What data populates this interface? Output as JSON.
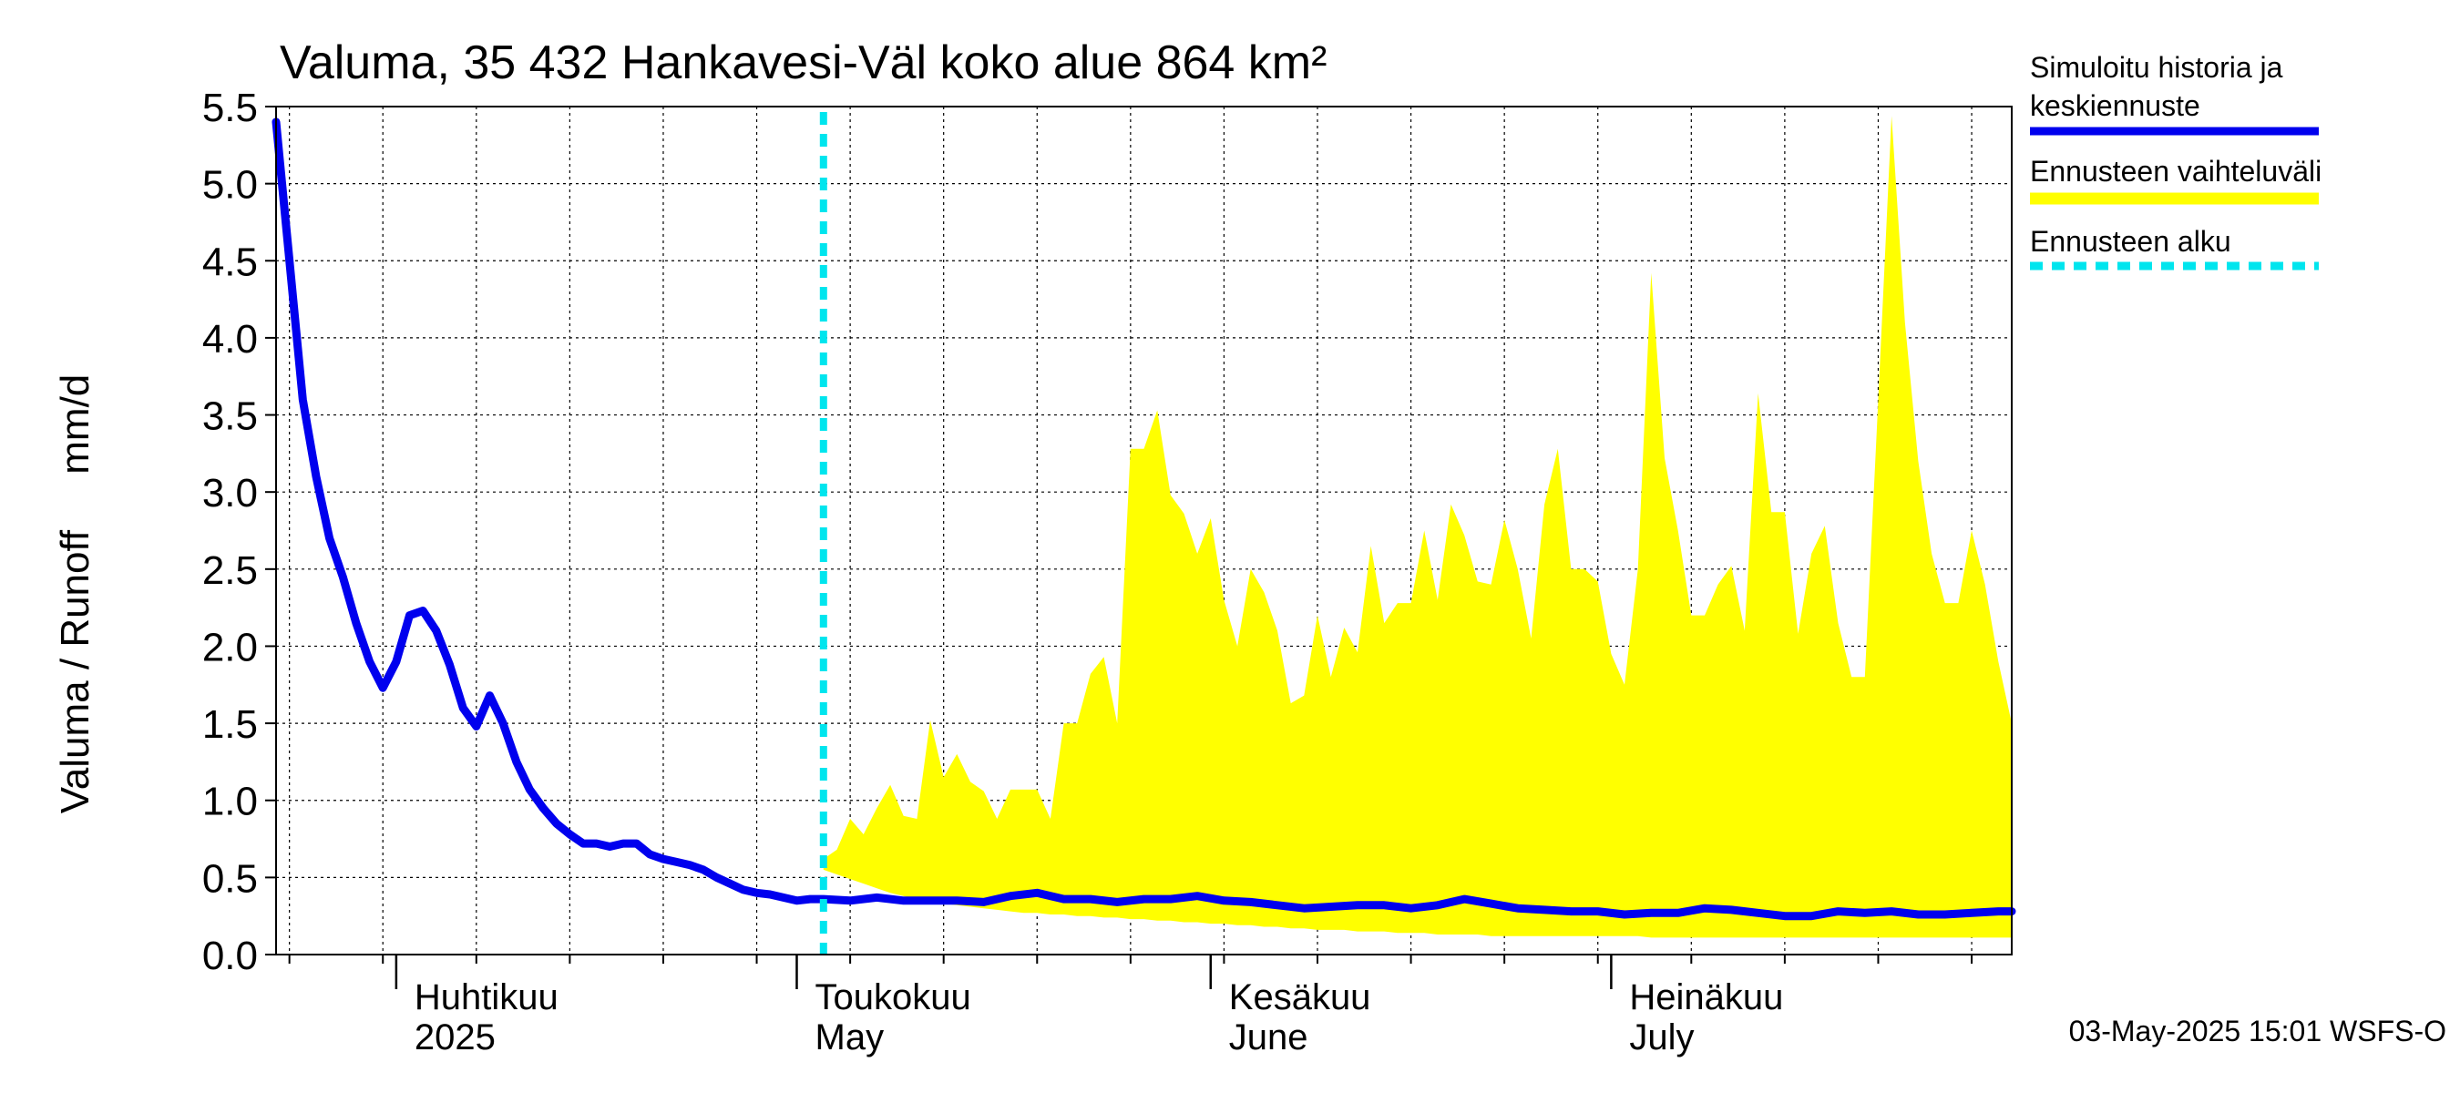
{
  "chart_data": {
    "type": "area",
    "title": "Valuma, 35 432 Hankavesi-Väl koko alue 864 km²",
    "ylabel": "Valuma / Runoff     mm/d",
    "xlabel": "",
    "ylim": [
      0,
      5.5
    ],
    "y_ticks": [
      "0.0",
      "0.5",
      "1.0",
      "1.5",
      "2.0",
      "2.5",
      "3.0",
      "3.5",
      "4.0",
      "4.5",
      "5.0",
      "5.5"
    ],
    "x_range": [
      "2025-03-23",
      "2025-07-31"
    ],
    "grid": true,
    "month_labels": [
      {
        "date": "2025-04-01",
        "fi": "Huhtikuu",
        "en": "2025"
      },
      {
        "date": "2025-05-01",
        "fi": "Toukokuu",
        "en": "May"
      },
      {
        "date": "2025-06-01",
        "fi": "Kesäkuu",
        "en": "June"
      },
      {
        "date": "2025-07-01",
        "fi": "Heinäkuu",
        "en": "July"
      }
    ],
    "forecast_start": "2025-05-03",
    "legend": {
      "position": "right",
      "items": [
        {
          "label_line1": "Simuloitu historia ja",
          "label_line2": "keskiennuste",
          "color": "#0000ee",
          "style": "solid"
        },
        {
          "label_line1": "Ennusteen vaihteluväli",
          "label_line2": "",
          "color": "#ffff00",
          "style": "band"
        },
        {
          "label_line1": "Ennusteen alku",
          "label_line2": "",
          "color": "#00e5ee",
          "style": "dashed"
        }
      ]
    },
    "timestamp": "03-May-2025 15:01 WSFS-O",
    "series": [
      {
        "name": "Simuloitu historia ja keskiennuste",
        "color": "#0000ee",
        "x": [
          "2025-03-23",
          "2025-03-24",
          "2025-03-25",
          "2025-03-26",
          "2025-03-27",
          "2025-03-28",
          "2025-03-29",
          "2025-03-30",
          "2025-03-31",
          "2025-04-01",
          "2025-04-02",
          "2025-04-03",
          "2025-04-04",
          "2025-04-05",
          "2025-04-06",
          "2025-04-07",
          "2025-04-08",
          "2025-04-09",
          "2025-04-10",
          "2025-04-11",
          "2025-04-12",
          "2025-04-13",
          "2025-04-14",
          "2025-04-15",
          "2025-04-16",
          "2025-04-17",
          "2025-04-18",
          "2025-04-19",
          "2025-04-20",
          "2025-04-21",
          "2025-04-22",
          "2025-04-23",
          "2025-04-24",
          "2025-04-25",
          "2025-04-26",
          "2025-04-27",
          "2025-04-28",
          "2025-04-29",
          "2025-04-30",
          "2025-05-01",
          "2025-05-02",
          "2025-05-03",
          "2025-05-05",
          "2025-05-07",
          "2025-05-09",
          "2025-05-11",
          "2025-05-13",
          "2025-05-15",
          "2025-05-17",
          "2025-05-19",
          "2025-05-21",
          "2025-05-23",
          "2025-05-25",
          "2025-05-27",
          "2025-05-29",
          "2025-05-31",
          "2025-06-02",
          "2025-06-04",
          "2025-06-06",
          "2025-06-08",
          "2025-06-10",
          "2025-06-12",
          "2025-06-14",
          "2025-06-16",
          "2025-06-18",
          "2025-06-20",
          "2025-06-22",
          "2025-06-24",
          "2025-06-26",
          "2025-06-28",
          "2025-06-30",
          "2025-07-02",
          "2025-07-04",
          "2025-07-06",
          "2025-07-08",
          "2025-07-10",
          "2025-07-12",
          "2025-07-14",
          "2025-07-16",
          "2025-07-18",
          "2025-07-20",
          "2025-07-22",
          "2025-07-24",
          "2025-07-26",
          "2025-07-28",
          "2025-07-30",
          "2025-07-31"
        ],
        "values": [
          5.4,
          4.5,
          3.6,
          3.1,
          2.7,
          2.45,
          2.15,
          1.9,
          1.73,
          1.9,
          2.2,
          2.23,
          2.1,
          1.88,
          1.6,
          1.48,
          1.68,
          1.5,
          1.25,
          1.07,
          0.95,
          0.85,
          0.78,
          0.72,
          0.72,
          0.7,
          0.72,
          0.72,
          0.65,
          0.62,
          0.6,
          0.58,
          0.55,
          0.5,
          0.46,
          0.42,
          0.4,
          0.39,
          0.37,
          0.35,
          0.36,
          0.36,
          0.35,
          0.37,
          0.35,
          0.35,
          0.35,
          0.34,
          0.38,
          0.4,
          0.36,
          0.36,
          0.34,
          0.36,
          0.36,
          0.38,
          0.35,
          0.34,
          0.32,
          0.3,
          0.31,
          0.32,
          0.32,
          0.3,
          0.32,
          0.36,
          0.33,
          0.3,
          0.29,
          0.28,
          0.28,
          0.26,
          0.27,
          0.27,
          0.3,
          0.29,
          0.27,
          0.25,
          0.25,
          0.28,
          0.27,
          0.28,
          0.26,
          0.26,
          0.27,
          0.28,
          0.28
        ]
      },
      {
        "name": "Ennusteen vaihteluväli",
        "color": "#ffff00",
        "x": [
          "2025-05-03",
          "2025-05-04",
          "2025-05-05",
          "2025-05-06",
          "2025-05-07",
          "2025-05-08",
          "2025-05-09",
          "2025-05-10",
          "2025-05-11",
          "2025-05-12",
          "2025-05-13",
          "2025-05-14",
          "2025-05-15",
          "2025-05-16",
          "2025-05-17",
          "2025-05-18",
          "2025-05-19",
          "2025-05-20",
          "2025-05-21",
          "2025-05-22",
          "2025-05-23",
          "2025-05-24",
          "2025-05-25",
          "2025-05-26",
          "2025-05-27",
          "2025-05-28",
          "2025-05-29",
          "2025-05-30",
          "2025-05-31",
          "2025-06-01",
          "2025-06-02",
          "2025-06-03",
          "2025-06-04",
          "2025-06-05",
          "2025-06-06",
          "2025-06-07",
          "2025-06-08",
          "2025-06-09",
          "2025-06-10",
          "2025-06-11",
          "2025-06-12",
          "2025-06-13",
          "2025-06-14",
          "2025-06-15",
          "2025-06-16",
          "2025-06-17",
          "2025-06-18",
          "2025-06-19",
          "2025-06-20",
          "2025-06-21",
          "2025-06-22",
          "2025-06-23",
          "2025-06-24",
          "2025-06-25",
          "2025-06-26",
          "2025-06-27",
          "2025-06-28",
          "2025-06-29",
          "2025-06-30",
          "2025-07-01",
          "2025-07-02",
          "2025-07-03",
          "2025-07-04",
          "2025-07-05",
          "2025-07-06",
          "2025-07-07",
          "2025-07-08",
          "2025-07-09",
          "2025-07-10",
          "2025-07-11",
          "2025-07-12",
          "2025-07-13",
          "2025-07-14",
          "2025-07-15",
          "2025-07-16",
          "2025-07-17",
          "2025-07-18",
          "2025-07-19",
          "2025-07-20",
          "2025-07-21",
          "2025-07-22",
          "2025-07-23",
          "2025-07-24",
          "2025-07-25",
          "2025-07-26",
          "2025-07-27",
          "2025-07-28",
          "2025-07-29",
          "2025-07-30",
          "2025-07-31"
        ],
        "upper": [
          0.62,
          0.68,
          0.88,
          0.78,
          0.95,
          1.1,
          0.9,
          0.88,
          1.52,
          1.15,
          1.3,
          1.12,
          1.06,
          0.88,
          1.07,
          1.07,
          1.07,
          0.88,
          1.5,
          1.5,
          1.82,
          1.93,
          1.5,
          3.28,
          3.28,
          3.53,
          2.98,
          2.86,
          2.6,
          2.83,
          2.3,
          2.0,
          2.5,
          2.35,
          2.1,
          1.63,
          1.68,
          2.2,
          1.8,
          2.12,
          1.96,
          2.65,
          2.15,
          2.28,
          2.28,
          2.75,
          2.3,
          2.92,
          2.72,
          2.42,
          2.4,
          2.82,
          2.5,
          2.05,
          2.92,
          3.28,
          2.5,
          2.5,
          2.42,
          1.95,
          1.75,
          2.5,
          4.42,
          3.22,
          2.75,
          2.2,
          2.2,
          2.4,
          2.52,
          2.1,
          3.64,
          2.87,
          2.87,
          2.08,
          2.6,
          2.78,
          2.15,
          1.8,
          1.8,
          3.6,
          5.44,
          4.1,
          3.2,
          2.6,
          2.28,
          2.28,
          2.75,
          2.4,
          1.9,
          1.5
        ],
        "lower": [
          0.55,
          0.52,
          0.49,
          0.46,
          0.43,
          0.4,
          0.38,
          0.36,
          0.34,
          0.33,
          0.32,
          0.31,
          0.3,
          0.29,
          0.28,
          0.27,
          0.27,
          0.26,
          0.26,
          0.25,
          0.25,
          0.24,
          0.24,
          0.23,
          0.23,
          0.22,
          0.22,
          0.21,
          0.21,
          0.2,
          0.2,
          0.19,
          0.19,
          0.18,
          0.18,
          0.17,
          0.17,
          0.16,
          0.16,
          0.16,
          0.15,
          0.15,
          0.15,
          0.14,
          0.14,
          0.14,
          0.13,
          0.13,
          0.13,
          0.13,
          0.12,
          0.12,
          0.12,
          0.12,
          0.12,
          0.12,
          0.12,
          0.12,
          0.12,
          0.12,
          0.12,
          0.12,
          0.11,
          0.11,
          0.11,
          0.11,
          0.11,
          0.11,
          0.11,
          0.11,
          0.11,
          0.11,
          0.11,
          0.11,
          0.11,
          0.11,
          0.11,
          0.11,
          0.11,
          0.11,
          0.11,
          0.11,
          0.11,
          0.11,
          0.11,
          0.11,
          0.11,
          0.11,
          0.11,
          0.11
        ]
      }
    ]
  }
}
